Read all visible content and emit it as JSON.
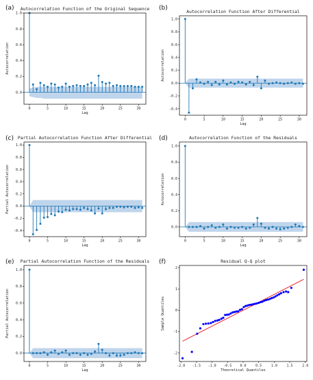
{
  "colors": {
    "stem": "#1f77b4",
    "band": "#a9c7e6",
    "qq_point": "#0000ff",
    "qq_line": "#e8252b",
    "axis": "#000000"
  },
  "chart_data": [
    {
      "letter": "(a)",
      "type": "stem",
      "title": "Autocorrelation Function of the Original Sequence",
      "xlabel": "Lag",
      "ylabel": "Autocorrelation",
      "xlim": [
        -1.5,
        32
      ],
      "ylim": [
        -0.15,
        1.0
      ],
      "xticks": [
        0,
        5,
        10,
        15,
        20,
        25,
        30
      ],
      "yticks": [
        0.0,
        0.2,
        0.4,
        0.6,
        0.8,
        1.0
      ],
      "band_upper": [
        0.05,
        0.06,
        0.07,
        0.07,
        0.07,
        0.07,
        0.07,
        0.07,
        0.07,
        0.07,
        0.07,
        0.07,
        0.07,
        0.07,
        0.07,
        0.07,
        0.07,
        0.07,
        0.07,
        0.07,
        0.07,
        0.07,
        0.07,
        0.07,
        0.07,
        0.07,
        0.07,
        0.07,
        0.07,
        0.07,
        0.07,
        0.07
      ],
      "band_lower": [
        -0.05,
        -0.06,
        -0.07,
        -0.07,
        -0.08,
        -0.08,
        -0.08,
        -0.08,
        -0.08,
        -0.08,
        -0.08,
        -0.08,
        -0.08,
        -0.08,
        -0.08,
        -0.08,
        -0.08,
        -0.08,
        -0.08,
        -0.08,
        -0.08,
        -0.08,
        -0.08,
        -0.08,
        -0.08,
        -0.08,
        -0.08,
        -0.08,
        -0.08,
        -0.08,
        -0.08,
        -0.08
      ],
      "values": [
        1.0,
        0.1,
        0.04,
        0.12,
        0.09,
        0.07,
        0.11,
        0.1,
        0.06,
        0.07,
        0.11,
        0.07,
        0.08,
        0.09,
        0.08,
        0.08,
        0.1,
        0.12,
        0.09,
        0.21,
        0.13,
        0.11,
        0.12,
        0.08,
        0.09,
        0.08,
        0.08,
        0.08,
        0.08,
        0.07,
        0.07,
        0.07
      ]
    },
    {
      "letter": "(b)",
      "type": "stem",
      "title": "Autocorrelation Function After Differential",
      "xlabel": "Lag",
      "ylabel": "Autocorrelation",
      "xlim": [
        -1.5,
        32
      ],
      "ylim": [
        -0.5,
        1.05
      ],
      "xticks": [
        0,
        5,
        10,
        15,
        20,
        25,
        30
      ],
      "yticks": [
        -0.4,
        -0.2,
        0.0,
        0.2,
        0.4,
        0.6,
        0.8,
        1.0
      ],
      "band_upper": [
        0.0,
        0.07,
        0.07,
        0.07,
        0.07,
        0.07,
        0.07,
        0.07,
        0.07,
        0.07,
        0.07,
        0.07,
        0.07,
        0.07,
        0.07,
        0.07,
        0.07,
        0.07,
        0.07,
        0.07,
        0.07,
        0.07,
        0.07,
        0.07,
        0.07,
        0.07,
        0.07,
        0.07,
        0.07,
        0.07,
        0.07,
        0.07
      ],
      "band_lower": [
        0.0,
        -0.07,
        -0.07,
        -0.07,
        -0.07,
        -0.07,
        -0.07,
        -0.07,
        -0.07,
        -0.07,
        -0.07,
        -0.07,
        -0.07,
        -0.07,
        -0.07,
        -0.07,
        -0.07,
        -0.07,
        -0.07,
        -0.07,
        -0.07,
        -0.07,
        -0.07,
        -0.07,
        -0.07,
        -0.07,
        -0.07,
        -0.07,
        -0.07,
        -0.07,
        -0.07,
        -0.07
      ],
      "values": [
        1.0,
        -0.46,
        -0.08,
        0.06,
        0.01,
        -0.01,
        0.02,
        -0.03,
        0.02,
        -0.02,
        0.04,
        -0.02,
        0.01,
        -0.01,
        0.02,
        0.01,
        -0.02,
        0.02,
        -0.03,
        0.1,
        -0.08,
        0.04,
        -0.01,
        0.0,
        0.01,
        0.0,
        -0.01,
        0.0,
        0.01,
        -0.01,
        0.0,
        -0.01
      ]
    },
    {
      "letter": "(c)",
      "type": "stem",
      "title": "Partial Autocorrelation Function After Differential",
      "xlabel": "Lag",
      "ylabel": "Partial Autocorrelation",
      "xlim": [
        -1.5,
        32
      ],
      "ylim": [
        -0.5,
        1.05
      ],
      "xticks": [
        0,
        5,
        10,
        15,
        20,
        25,
        30
      ],
      "yticks": [
        -0.4,
        -0.2,
        0.0,
        0.2,
        0.4,
        0.6,
        0.8,
        1.0
      ],
      "band_upper": [
        0.0,
        0.1,
        0.1,
        0.1,
        0.1,
        0.1,
        0.1,
        0.1,
        0.1,
        0.1,
        0.1,
        0.1,
        0.1,
        0.1,
        0.1,
        0.1,
        0.1,
        0.1,
        0.1,
        0.1,
        0.1,
        0.1,
        0.1,
        0.1,
        0.1,
        0.1,
        0.1,
        0.1,
        0.1,
        0.1,
        0.1,
        0.1
      ],
      "band_lower": [
        0.0,
        -0.1,
        -0.1,
        -0.1,
        -0.1,
        -0.1,
        -0.1,
        -0.1,
        -0.1,
        -0.1,
        -0.1,
        -0.1,
        -0.1,
        -0.1,
        -0.1,
        -0.1,
        -0.1,
        -0.1,
        -0.1,
        -0.1,
        -0.1,
        -0.1,
        -0.1,
        -0.1,
        -0.1,
        -0.1,
        -0.1,
        -0.1,
        -0.1,
        -0.1,
        -0.1,
        -0.1
      ],
      "values": [
        1.0,
        -0.46,
        -0.39,
        -0.29,
        -0.19,
        -0.18,
        -0.13,
        -0.15,
        -0.09,
        -0.1,
        -0.06,
        -0.07,
        -0.05,
        -0.05,
        -0.06,
        -0.03,
        -0.05,
        -0.07,
        -0.12,
        -0.04,
        -0.12,
        -0.05,
        -0.03,
        -0.03,
        -0.01,
        -0.01,
        -0.02,
        -0.01,
        -0.01,
        -0.03,
        -0.02,
        -0.03
      ]
    },
    {
      "letter": "(d)",
      "type": "stem",
      "title": "Autocorrelation Function of the Residuals",
      "xlabel": "Lag",
      "ylabel": "Autocorrelation",
      "xlim": [
        -1.5,
        32
      ],
      "ylim": [
        -0.12,
        1.05
      ],
      "xticks": [
        0,
        5,
        10,
        15,
        20,
        25,
        30
      ],
      "yticks": [
        0.0,
        0.2,
        0.4,
        0.6,
        0.8,
        1.0
      ],
      "band_upper": [
        0.0,
        0.06,
        0.06,
        0.06,
        0.06,
        0.06,
        0.06,
        0.06,
        0.06,
        0.06,
        0.06,
        0.06,
        0.06,
        0.06,
        0.06,
        0.06,
        0.06,
        0.06,
        0.06,
        0.06,
        0.06,
        0.06,
        0.06,
        0.06,
        0.06,
        0.06,
        0.06,
        0.06,
        0.06,
        0.06,
        0.06,
        0.06
      ],
      "band_lower": [
        0.0,
        -0.06,
        -0.06,
        -0.06,
        -0.06,
        -0.06,
        -0.06,
        -0.06,
        -0.06,
        -0.06,
        -0.06,
        -0.06,
        -0.06,
        -0.06,
        -0.06,
        -0.06,
        -0.06,
        -0.06,
        -0.06,
        -0.06,
        -0.06,
        -0.06,
        -0.06,
        -0.06,
        -0.06,
        -0.06,
        -0.06,
        -0.06,
        -0.06,
        -0.06,
        -0.06,
        -0.06
      ],
      "values": [
        1.0,
        0.0,
        0.0,
        0.0,
        0.01,
        -0.02,
        0.0,
        0.02,
        -0.01,
        0.0,
        0.03,
        -0.02,
        0.0,
        -0.01,
        -0.01,
        0.0,
        -0.02,
        -0.01,
        0.03,
        0.11,
        0.04,
        -0.01,
        -0.02,
        0.0,
        -0.02,
        -0.03,
        -0.02,
        -0.01,
        0.0,
        0.03,
        0.01,
        0.0
      ]
    },
    {
      "letter": "(e)",
      "type": "stem",
      "title": "Partial Autocorrelation Function of the Residuals",
      "xlabel": "Lag",
      "ylabel": "Partial Autocorrelation",
      "xlim": [
        -1.5,
        32
      ],
      "ylim": [
        -0.1,
        1.05
      ],
      "xticks": [
        0,
        5,
        10,
        15,
        20,
        25,
        30
      ],
      "yticks": [
        0.0,
        0.2,
        0.4,
        0.6,
        0.8,
        1.0
      ],
      "band_upper": [
        0.0,
        0.06,
        0.06,
        0.06,
        0.06,
        0.06,
        0.06,
        0.06,
        0.06,
        0.06,
        0.06,
        0.06,
        0.06,
        0.06,
        0.06,
        0.06,
        0.06,
        0.06,
        0.06,
        0.06,
        0.06,
        0.06,
        0.06,
        0.06,
        0.06,
        0.06,
        0.06,
        0.06,
        0.06,
        0.06,
        0.06,
        0.06
      ],
      "band_lower": [
        0.0,
        -0.06,
        -0.06,
        -0.06,
        -0.06,
        -0.06,
        -0.06,
        -0.06,
        -0.06,
        -0.06,
        -0.06,
        -0.06,
        -0.06,
        -0.06,
        -0.06,
        -0.06,
        -0.06,
        -0.06,
        -0.06,
        -0.06,
        -0.06,
        -0.06,
        -0.06,
        -0.06,
        -0.06,
        -0.06,
        -0.06,
        -0.06,
        -0.06,
        -0.06,
        -0.06,
        -0.06
      ],
      "values": [
        1.0,
        0.0,
        0.0,
        0.0,
        0.01,
        -0.02,
        0.01,
        0.03,
        -0.01,
        0.01,
        0.03,
        -0.02,
        0.0,
        0.0,
        -0.02,
        0.0,
        -0.02,
        -0.01,
        0.02,
        0.11,
        0.04,
        0.0,
        -0.03,
        0.0,
        -0.03,
        -0.03,
        -0.02,
        0.0,
        0.0,
        0.01,
        0.0,
        0.0
      ]
    },
    {
      "letter": "(f)",
      "type": "scatter",
      "title": "Residual Q-Q plot",
      "xlabel": "Theoretical Quantiles",
      "ylabel": "Sample Quantiles",
      "xlim": [
        -2.05,
        2.05
      ],
      "ylim": [
        -2.4,
        2.1
      ],
      "xticks": [
        -2.0,
        -1.5,
        -1.0,
        -0.5,
        0.0,
        0.5,
        1.0,
        1.5,
        2.0
      ],
      "yticks": [
        -2,
        -1,
        0,
        1,
        2
      ],
      "reference_line": {
        "x": [
          -1.95,
          1.95
        ],
        "y": [
          -1.45,
          1.45
        ]
      },
      "points": [
        [
          -1.95,
          -2.25
        ],
        [
          -1.65,
          -1.95
        ],
        [
          -1.48,
          -1.1
        ],
        [
          -1.38,
          -0.85
        ],
        [
          -1.28,
          -0.65
        ],
        [
          -1.2,
          -0.63
        ],
        [
          -1.12,
          -0.62
        ],
        [
          -1.04,
          -0.6
        ],
        [
          -0.97,
          -0.55
        ],
        [
          -0.9,
          -0.5
        ],
        [
          -0.83,
          -0.48
        ],
        [
          -0.77,
          -0.45
        ],
        [
          -0.7,
          -0.4
        ],
        [
          -0.64,
          -0.35
        ],
        [
          -0.58,
          -0.22
        ],
        [
          -0.52,
          -0.21
        ],
        [
          -0.46,
          -0.2
        ],
        [
          -0.4,
          -0.15
        ],
        [
          -0.34,
          -0.1
        ],
        [
          -0.28,
          -0.08
        ],
        [
          -0.22,
          -0.06
        ],
        [
          -0.16,
          -0.05
        ],
        [
          -0.1,
          0.02
        ],
        [
          -0.04,
          0.05
        ],
        [
          0.02,
          0.15
        ],
        [
          0.08,
          0.2
        ],
        [
          0.14,
          0.22
        ],
        [
          0.2,
          0.25
        ],
        [
          0.26,
          0.26
        ],
        [
          0.32,
          0.28
        ],
        [
          0.38,
          0.3
        ],
        [
          0.44,
          0.32
        ],
        [
          0.5,
          0.35
        ],
        [
          0.56,
          0.38
        ],
        [
          0.62,
          0.4
        ],
        [
          0.68,
          0.45
        ],
        [
          0.74,
          0.48
        ],
        [
          0.8,
          0.5
        ],
        [
          0.86,
          0.53
        ],
        [
          0.92,
          0.57
        ],
        [
          0.98,
          0.6
        ],
        [
          1.04,
          0.65
        ],
        [
          1.1,
          0.7
        ],
        [
          1.16,
          0.75
        ],
        [
          1.22,
          0.8
        ],
        [
          1.3,
          0.85
        ],
        [
          1.38,
          0.88
        ],
        [
          1.45,
          0.85
        ],
        [
          1.55,
          1.05
        ],
        [
          1.95,
          1.9
        ]
      ]
    }
  ]
}
